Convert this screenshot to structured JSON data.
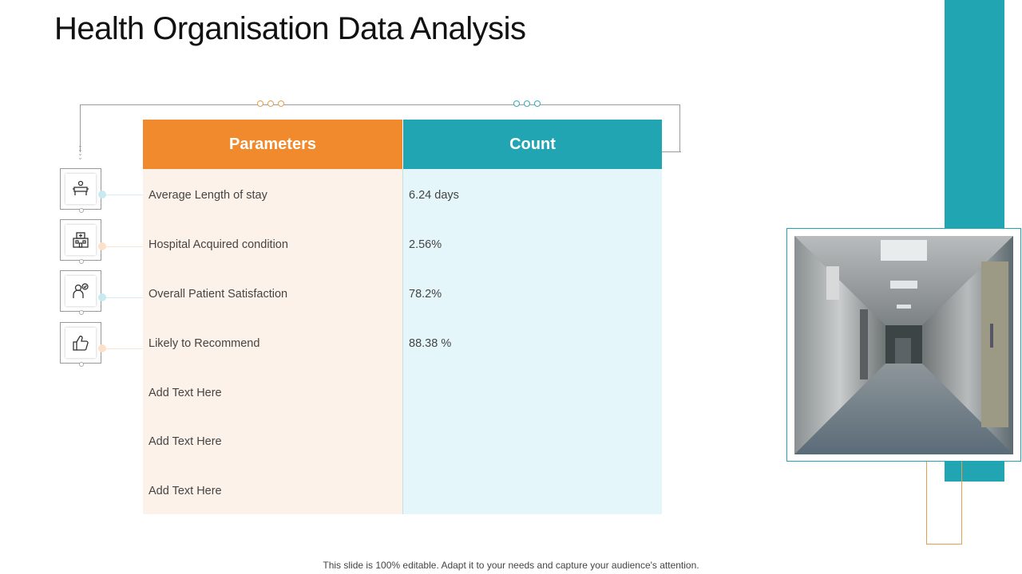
{
  "title": "Health Organisation Data Analysis",
  "table": {
    "headers": {
      "parameters": "Parameters",
      "count": "Count"
    },
    "rows": [
      {
        "parameter": "Average Length of stay",
        "count": "6.24 days"
      },
      {
        "parameter": "Hospital Acquired condition",
        "count": "2.56%"
      },
      {
        "parameter": "Overall Patient Satisfaction",
        "count": "78.2%"
      },
      {
        "parameter": "Likely to Recommend",
        "count": "88.38 %"
      },
      {
        "parameter": "Add Text Here",
        "count": ""
      },
      {
        "parameter": "Add Text Here",
        "count": ""
      },
      {
        "parameter": "Add Text Here",
        "count": ""
      }
    ]
  },
  "icons": [
    "hospital-bed-icon",
    "hospital-building-icon",
    "doctor-check-icon",
    "thumbs-up-icon"
  ],
  "colors": {
    "orange": "#f08a2c",
    "teal": "#22a5b3",
    "param_bg": "#fdf2ea",
    "count_bg": "#e5f6fa"
  },
  "footer": "This slide is 100% editable. Adapt it to your needs and capture your audience's attention."
}
